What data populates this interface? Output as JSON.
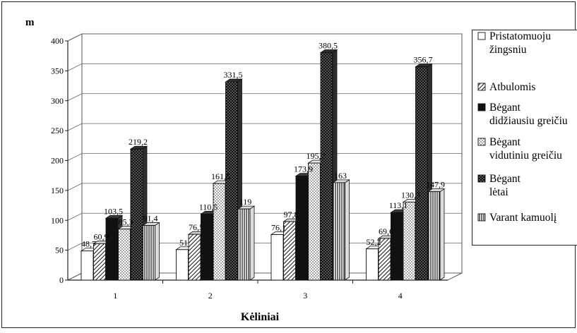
{
  "chart_data": {
    "type": "bar",
    "ylabel": "m",
    "xlabel": "Kėliniai",
    "categories": [
      "1",
      "2",
      "3",
      "4"
    ],
    "ylim": [
      0,
      400
    ],
    "yticks": [
      0,
      50,
      100,
      150,
      200,
      250,
      300,
      350,
      400
    ],
    "grid": true,
    "legend_position": "right",
    "style": "3d-clustered-bar",
    "series": [
      {
        "name": "Pristatomuoju žingsniu",
        "legend_lines": [
          "Pristatomuoju",
          "žingsniu"
        ],
        "pattern": "white",
        "values": [
          48.7,
          51,
          76.1,
          52.2
        ],
        "labels": [
          "48,7",
          "51",
          "76,1",
          "52,2"
        ]
      },
      {
        "name": "Atbulomis",
        "legend_lines": [
          "Atbulomis"
        ],
        "pattern": "hatch",
        "values": [
          60.9,
          76.5,
          97.8,
          69.6
        ],
        "labels": [
          "60,9",
          "76,5",
          "97,8",
          "69,6"
        ]
      },
      {
        "name": "Bėgant didžiausiu greičiu",
        "legend_lines": [
          "Bėgant",
          "didžiausiu greičiu"
        ],
        "pattern": "black",
        "values": [
          103.5,
          110.5,
          173.9,
          113.1
        ],
        "labels": [
          "103,5",
          "110,5",
          "173,9",
          "113,1"
        ]
      },
      {
        "name": "Bėgant vidutiniu greičiu",
        "legend_lines": [
          "Bėgant",
          "vidutiniu greičiu"
        ],
        "pattern": "dots",
        "values": [
          85.3,
          161.5,
          195.7,
          130.5
        ],
        "labels": [
          "85,3",
          "161,5",
          "195,7",
          "130,5"
        ]
      },
      {
        "name": "Bėgant lėtai",
        "legend_lines": [
          "Bėgant",
          "lėtai"
        ],
        "pattern": "darkdots",
        "values": [
          219.2,
          331.5,
          380.5,
          356.7
        ],
        "labels": [
          "219,2",
          "331,5",
          "380,5",
          "356,7"
        ]
      },
      {
        "name": "Varant kamuolį",
        "legend_lines": [
          "Varant kamuolį"
        ],
        "pattern": "vstripes",
        "values": [
          91.4,
          119,
          163,
          147.9
        ],
        "labels": [
          "91,4",
          "119",
          "163",
          "147,9"
        ]
      }
    ]
  }
}
